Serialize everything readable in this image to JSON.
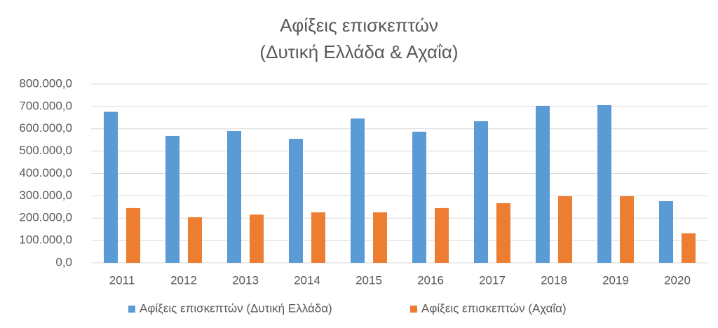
{
  "chart_data": {
    "type": "bar",
    "title": [
      "Αφίξεις επισκεπτών",
      "(Δυτική Ελλάδα & Αχαΐα)"
    ],
    "categories": [
      "2011",
      "2012",
      "2013",
      "2014",
      "2015",
      "2016",
      "2017",
      "2018",
      "2019",
      "2020"
    ],
    "series": [
      {
        "name": "Αφίξεις επισκεπτών (Δυτική Ελλάδα)",
        "color": "#5b9bd5",
        "values": [
          676000,
          568000,
          590000,
          555000,
          646000,
          587000,
          634000,
          703000,
          706000,
          276000
        ]
      },
      {
        "name": "Αφίξεις επισκεπτών (Αχαΐα)",
        "color": "#ed7d31",
        "values": [
          245000,
          204000,
          216000,
          226000,
          226000,
          245000,
          267000,
          298000,
          298000,
          132000
        ]
      }
    ],
    "ylim": [
      0,
      800000
    ],
    "yticks": [
      {
        "value": 0,
        "label": "0,0"
      },
      {
        "value": 100000,
        "label": "100.000,0"
      },
      {
        "value": 200000,
        "label": "200.000,0"
      },
      {
        "value": 300000,
        "label": "300.000,0"
      },
      {
        "value": 400000,
        "label": "400.000,0"
      },
      {
        "value": 500000,
        "label": "500.000,0"
      },
      {
        "value": 600000,
        "label": "600.000,0"
      },
      {
        "value": 700000,
        "label": "700.000,0"
      },
      {
        "value": 800000,
        "label": "800.000,0"
      }
    ],
    "grid": true,
    "legend": "bottom"
  }
}
